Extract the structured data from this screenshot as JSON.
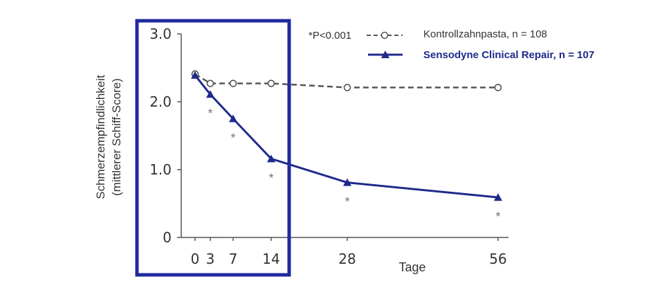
{
  "chart_data": {
    "type": "line",
    "xlabel": "Tage",
    "ylabel": [
      "Schmerzempfindlichkeit",
      "(mittlerer Schiff-Score)"
    ],
    "x": [
      0,
      3,
      7,
      14,
      28,
      56
    ],
    "x_tick_labels": [
      "0",
      "3",
      "7",
      "14",
      "28",
      "56"
    ],
    "y_ticks": [
      0,
      1.0,
      2.0,
      3.0
    ],
    "y_tick_labels": [
      "0",
      "1.0",
      "2.0",
      "3.0"
    ],
    "ylim": [
      0,
      3.0
    ],
    "significance_note": "*P<0.001",
    "significance_marker": "*",
    "series": [
      {
        "name": "Kontrollzahnpasta, n = 108",
        "style": "dashed",
        "marker": "open-circle",
        "color": "#555555",
        "values": [
          2.41,
          2.27,
          2.27,
          2.27,
          2.21,
          2.21
        ]
      },
      {
        "name": "Sensodyne Clinical Repair, n = 107",
        "style": "solid",
        "marker": "triangle",
        "color": "#1f2a8c",
        "values": [
          2.39,
          2.11,
          1.75,
          1.16,
          0.81,
          0.59
        ],
        "significant_at": [
          3,
          7,
          14,
          28,
          56
        ]
      }
    ],
    "highlight_box": {
      "x_range": [
        0,
        14
      ],
      "color": "#1f2a9c"
    },
    "grid": false,
    "legend_position": "top-right"
  }
}
